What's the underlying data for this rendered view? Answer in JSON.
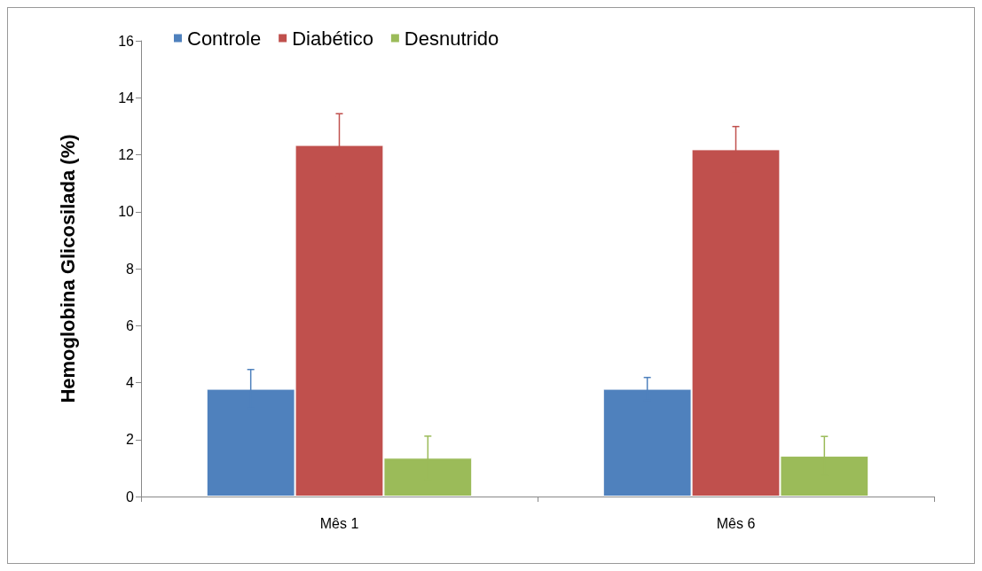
{
  "chart_data": {
    "type": "bar",
    "ylabel": "Hemoglobina Glicosilada (%)",
    "categories": [
      "Mês 1",
      "Mês 6"
    ],
    "series": [
      {
        "name": "Controle",
        "color": "#4f81bd",
        "values": [
          3.78,
          3.78
        ],
        "errors": [
          0.68,
          0.4
        ]
      },
      {
        "name": "Diabético",
        "color": "#c0504d",
        "values": [
          12.34,
          12.19
        ],
        "errors": [
          1.1,
          0.8
        ]
      },
      {
        "name": "Desnutrido",
        "color": "#9bbb59",
        "values": [
          1.36,
          1.43
        ],
        "errors": [
          0.76,
          0.68
        ]
      }
    ],
    "ylim": [
      0,
      16
    ],
    "yticks": [
      0,
      2,
      4,
      6,
      8,
      10,
      12,
      14,
      16
    ],
    "grid": false,
    "legend": "top left"
  }
}
